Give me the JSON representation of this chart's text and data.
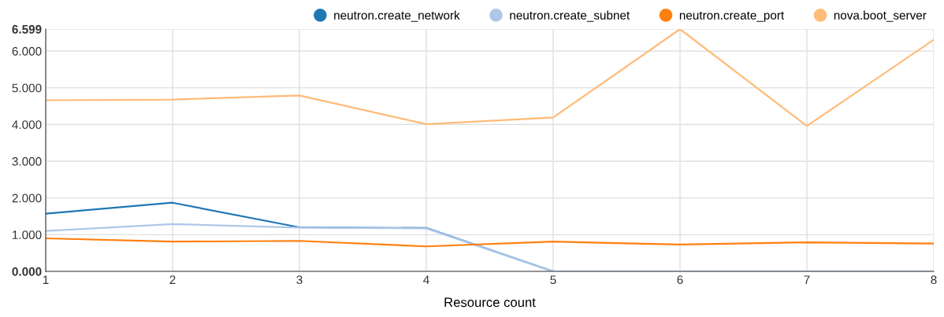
{
  "chart_data": {
    "type": "line",
    "xlabel": "Resource count",
    "x": [
      1,
      2,
      3,
      4,
      5,
      6,
      7,
      8
    ],
    "series": [
      {
        "name": "neutron.create_network",
        "color": "#1f77b4",
        "values": [
          1.57,
          1.87,
          1.2,
          1.18,
          0,
          0,
          null,
          null
        ]
      },
      {
        "name": "neutron.create_subnet",
        "color": "#aec7e8",
        "values": [
          1.1,
          1.29,
          1.19,
          1.17,
          0,
          0,
          0,
          0
        ]
      },
      {
        "name": "neutron.create_port",
        "color": "#ff7f0e",
        "values": [
          0.9,
          0.81,
          0.83,
          0.68,
          0.81,
          0.73,
          0.79,
          0.76
        ]
      },
      {
        "name": "nova.boot_server",
        "color": "#ffbb78",
        "values": [
          4.66,
          4.68,
          4.79,
          4.01,
          4.19,
          6.599,
          3.96,
          6.31
        ]
      }
    ],
    "xlim": [
      1,
      8
    ],
    "xticks": [
      1,
      2,
      3,
      4,
      5,
      6,
      7,
      8
    ],
    "ylim": [
      0,
      6.599
    ],
    "yticks": [
      {
        "value": 0,
        "label": "0.000"
      },
      {
        "value": 1,
        "label": "1.000"
      },
      {
        "value": 2,
        "label": "2.000"
      },
      {
        "value": 3,
        "label": "3.000"
      },
      {
        "value": 4,
        "label": "4.000"
      },
      {
        "value": 5,
        "label": "5.000"
      },
      {
        "value": 6,
        "label": "6.000"
      },
      {
        "value": 6.599,
        "label": "6.599"
      }
    ],
    "grid": true,
    "legend": "top right",
    "marker": "none",
    "line_style": "solid"
  }
}
